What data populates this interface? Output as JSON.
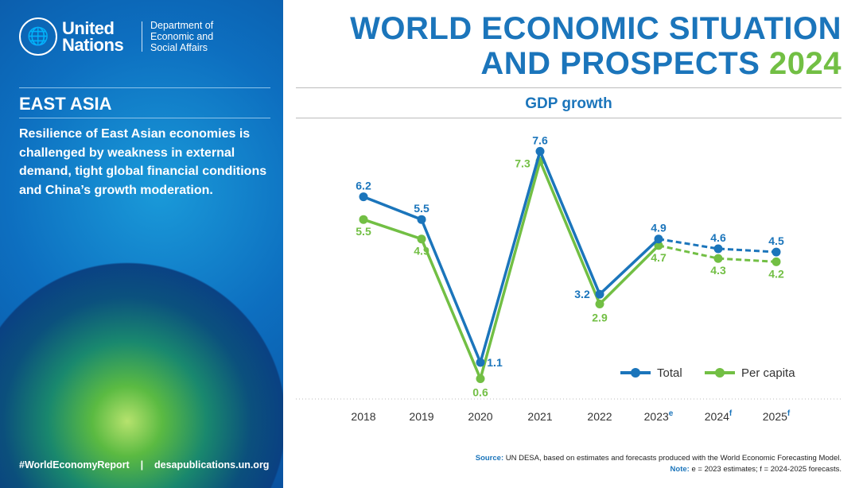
{
  "brand": {
    "org": "United Nations",
    "dept": "Department of Economic and Social Affairs",
    "emblem_icon": "un-emblem-icon"
  },
  "panel": {
    "region": "EAST ASIA",
    "description": "Resilience of East Asian economies is challenged by weakness in external demand, tight global financial conditions and China’s growth moderation.",
    "hashtag": "#WorldEconomyReport",
    "separator": "|",
    "website": "desapublications.un.org"
  },
  "header": {
    "title_line1": "WORLD ECONOMIC SITUATION",
    "title_line2": "AND PROSPECTS",
    "title_year": "2024"
  },
  "footer": {
    "source_label": "Source:",
    "source_text": "UN DESA, based on estimates and forecasts produced with the World Economic Forecasting Model.",
    "note_label": "Note:",
    "note_text": "e = 2023 estimates; f = 2024-2025 forecasts."
  },
  "colors": {
    "total": "#1b75bb",
    "per_capita": "#72bf44"
  },
  "chart_data": {
    "type": "line",
    "title": "GDP growth",
    "categories": [
      "2018",
      "2019",
      "2020",
      "2021",
      "2022",
      "2023",
      "2024",
      "2025"
    ],
    "category_superscripts": [
      "",
      "",
      "",
      "",
      "",
      "e",
      "f",
      "f"
    ],
    "forecast_from_index": 5,
    "ylim": [
      0,
      8
    ],
    "grid": false,
    "legend": "bottom-right",
    "series": [
      {
        "name": "Total",
        "values": [
          6.2,
          5.5,
          1.1,
          7.6,
          3.2,
          4.9,
          4.6,
          4.5
        ]
      },
      {
        "name": "Per capita",
        "values": [
          5.5,
          4.9,
          0.6,
          7.3,
          2.9,
          4.7,
          4.3,
          4.2
        ]
      }
    ]
  }
}
